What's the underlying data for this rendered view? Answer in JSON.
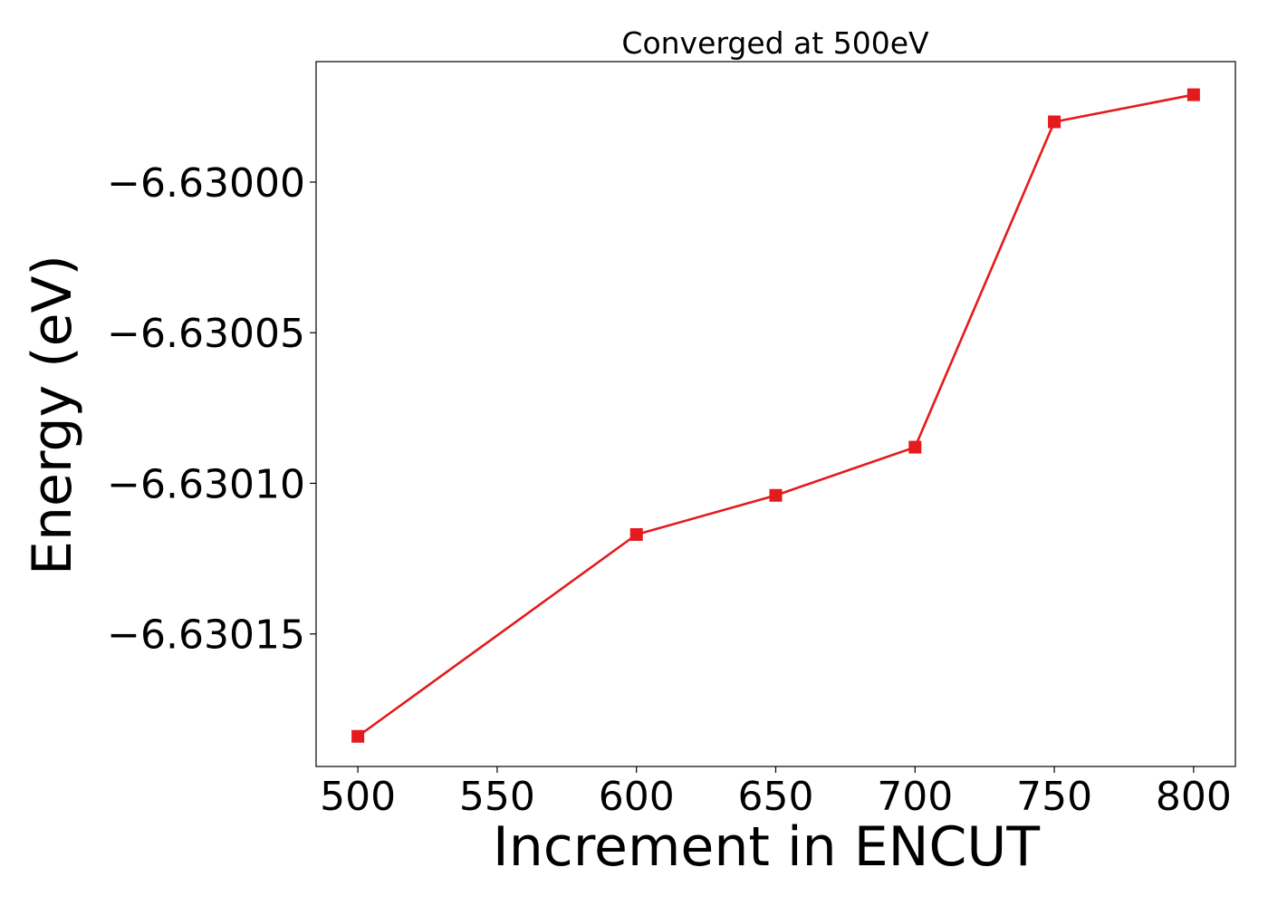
{
  "chart_data": {
    "type": "line",
    "title": "Converged at 500eV",
    "xlabel": "Increment in ENCUT",
    "ylabel": "Energy (eV)",
    "x": [
      500,
      600,
      650,
      700,
      750,
      800
    ],
    "series": [
      {
        "values": [
          -6.630184,
          -6.630117,
          -6.630104,
          -6.630088,
          -6.62998,
          -6.629971
        ],
        "color": "#e41a1c",
        "marker": "square"
      }
    ],
    "xticks": [
      500,
      550,
      600,
      650,
      700,
      750,
      800
    ],
    "xtick_labels": [
      "500",
      "550",
      "600",
      "650",
      "700",
      "750",
      "800"
    ],
    "yticks": [
      -6.63,
      -6.63005,
      -6.6301,
      -6.63015
    ],
    "ytick_labels": [
      "−6.63000",
      "−6.63005",
      "−6.63010",
      "−6.63015"
    ],
    "xlim": [
      485,
      815
    ],
    "ylim": [
      -6.630194,
      -6.62996
    ],
    "grid": false,
    "legend": false
  }
}
